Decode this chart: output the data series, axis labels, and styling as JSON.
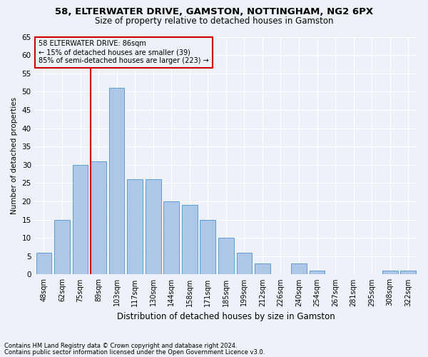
{
  "title1": "58, ELTERWATER DRIVE, GAMSTON, NOTTINGHAM, NG2 6PX",
  "title2": "Size of property relative to detached houses in Gamston",
  "xlabel": "Distribution of detached houses by size in Gamston",
  "ylabel": "Number of detached properties",
  "bar_labels": [
    "48sqm",
    "62sqm",
    "75sqm",
    "89sqm",
    "103sqm",
    "117sqm",
    "130sqm",
    "144sqm",
    "158sqm",
    "171sqm",
    "185sqm",
    "199sqm",
    "212sqm",
    "226sqm",
    "240sqm",
    "254sqm",
    "267sqm",
    "281sqm",
    "295sqm",
    "308sqm",
    "322sqm"
  ],
  "bar_values": [
    6,
    15,
    30,
    31,
    51,
    26,
    26,
    20,
    19,
    15,
    10,
    6,
    3,
    0,
    3,
    1,
    0,
    0,
    0,
    1,
    1
  ],
  "bar_color": "#aec6e8",
  "bar_edgecolor": "#5a9fd4",
  "vline_index": 3,
  "vline_color": "#cc0000",
  "annotation_title": "58 ELTERWATER DRIVE: 86sqm",
  "annotation_line1": "← 15% of detached houses are smaller (39)",
  "annotation_line2": "85% of semi-detached houses are larger (223) →",
  "annotation_box_edgecolor": "#cc0000",
  "ylim": [
    0,
    65
  ],
  "yticks": [
    0,
    5,
    10,
    15,
    20,
    25,
    30,
    35,
    40,
    45,
    50,
    55,
    60,
    65
  ],
  "footer1": "Contains HM Land Registry data © Crown copyright and database right 2024.",
  "footer2": "Contains public sector information licensed under the Open Government Licence v3.0.",
  "bg_color": "#eef2f8",
  "grid_color": "#ffffff",
  "title1_fontsize": 9.5,
  "title2_fontsize": 8.5,
  "bar_fontsize": 7,
  "ylabel_fontsize": 7.5,
  "xlabel_fontsize": 8.5
}
